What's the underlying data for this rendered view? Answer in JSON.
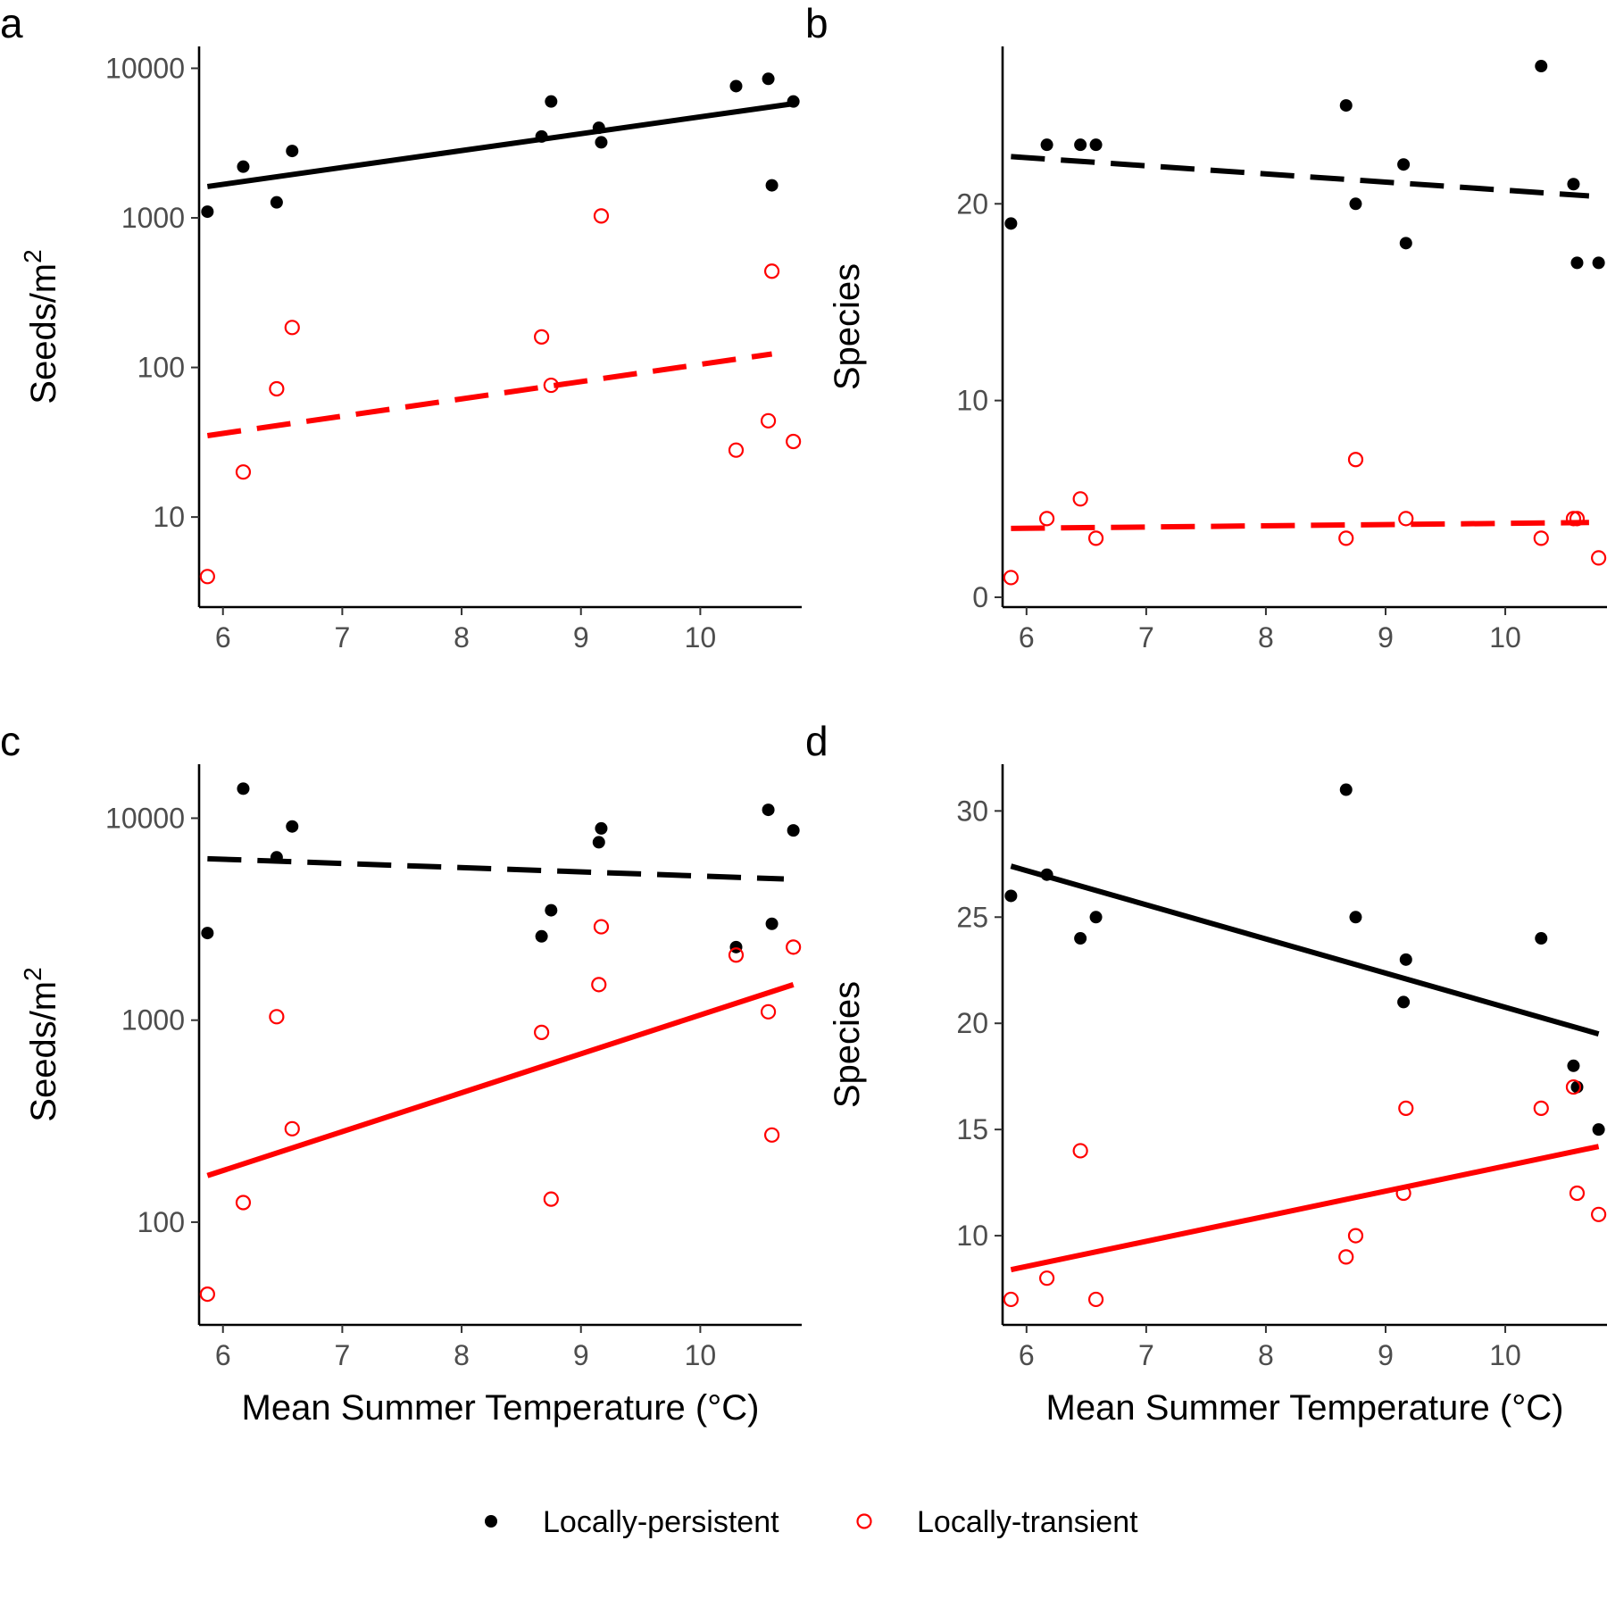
{
  "legend": {
    "items": [
      {
        "key": "persistent",
        "label": "Locally-persistent"
      },
      {
        "key": "transient",
        "label": "Locally-transient"
      }
    ]
  },
  "styles": {
    "persistent": {
      "color": "#000000",
      "marker": "filled-circle"
    },
    "transient": {
      "color": "#ff0000",
      "marker": "open-circle"
    }
  },
  "chart_data": [
    {
      "panel": "a",
      "type": "scatter",
      "xlabel": "",
      "ylabel": "Seeds/m",
      "ylabel_sup": "2",
      "yscale": "log",
      "xlim": [
        5.8,
        10.85
      ],
      "ylim": [
        2.5,
        14000
      ],
      "xticks": [
        6,
        7,
        8,
        9,
        10
      ],
      "xtick_labels": [
        "6",
        "7",
        "8",
        "9",
        "10"
      ],
      "yticks": [
        10,
        100,
        1000,
        10000
      ],
      "ytick_labels": [
        "10",
        "100",
        "1000",
        "10000"
      ],
      "grid": false,
      "series": [
        {
          "key": "persistent",
          "points": [
            [
              5.87,
              1100
            ],
            [
              6.17,
              2200
            ],
            [
              6.45,
              1270
            ],
            [
              6.58,
              2800
            ],
            [
              8.67,
              3500
            ],
            [
              8.75,
              6000
            ],
            [
              9.15,
              4000
            ],
            [
              9.17,
              3200
            ],
            [
              10.3,
              7600
            ],
            [
              10.57,
              8500
            ],
            [
              10.6,
              1650
            ],
            [
              10.78,
              6000
            ]
          ],
          "fit": {
            "x": [
              5.87,
              10.78
            ],
            "y": [
              1620,
              5800
            ],
            "style": "solid"
          }
        },
        {
          "key": "transient",
          "points": [
            [
              5.87,
              4
            ],
            [
              6.17,
              20
            ],
            [
              6.45,
              72
            ],
            [
              6.58,
              185
            ],
            [
              8.67,
              160
            ],
            [
              8.75,
              76
            ],
            [
              9.17,
              1030
            ],
            [
              10.3,
              28
            ],
            [
              10.57,
              44
            ],
            [
              10.6,
              440
            ],
            [
              10.78,
              32
            ]
          ],
          "fit": {
            "x": [
              5.87,
              10.6
            ],
            "y": [
              35,
              123
            ],
            "style": "dashed"
          }
        }
      ]
    },
    {
      "panel": "b",
      "type": "scatter",
      "xlabel": "",
      "ylabel": "Species",
      "yscale": "linear",
      "xlim": [
        5.8,
        10.85
      ],
      "ylim": [
        -0.5,
        28
      ],
      "xticks": [
        6,
        7,
        8,
        9,
        10
      ],
      "xtick_labels": [
        "6",
        "7",
        "8",
        "9",
        "10"
      ],
      "yticks": [
        0,
        10,
        20
      ],
      "ytick_labels": [
        "0",
        "10",
        "20"
      ],
      "grid": false,
      "series": [
        {
          "key": "persistent",
          "points": [
            [
              5.87,
              19
            ],
            [
              6.17,
              23
            ],
            [
              6.45,
              23
            ],
            [
              6.58,
              23
            ],
            [
              8.67,
              25
            ],
            [
              8.75,
              20
            ],
            [
              9.15,
              22
            ],
            [
              9.17,
              18
            ],
            [
              10.3,
              27
            ],
            [
              10.57,
              21
            ],
            [
              10.6,
              17
            ],
            [
              10.78,
              17
            ]
          ],
          "fit": {
            "x": [
              5.87,
              10.7
            ],
            "y": [
              22.4,
              20.4
            ],
            "style": "dashed"
          }
        },
        {
          "key": "transient",
          "points": [
            [
              5.87,
              1
            ],
            [
              6.17,
              4
            ],
            [
              6.45,
              5
            ],
            [
              6.58,
              3
            ],
            [
              8.67,
              3
            ],
            [
              8.75,
              7
            ],
            [
              9.17,
              4
            ],
            [
              10.3,
              3
            ],
            [
              10.57,
              4
            ],
            [
              10.6,
              4
            ],
            [
              10.78,
              2
            ]
          ],
          "fit": {
            "x": [
              5.87,
              10.7
            ],
            "y": [
              3.5,
              3.8
            ],
            "style": "dashed"
          }
        }
      ]
    },
    {
      "panel": "c",
      "type": "scatter",
      "xlabel": "Mean Summer Temperature (°C)",
      "ylabel": "Seeds/m",
      "ylabel_sup": "2",
      "yscale": "log",
      "xlim": [
        5.8,
        10.85
      ],
      "ylim": [
        31,
        18500
      ],
      "xticks": [
        6,
        7,
        8,
        9,
        10
      ],
      "xtick_labels": [
        "6",
        "7",
        "8",
        "9",
        "10"
      ],
      "yticks": [
        100,
        1000,
        10000
      ],
      "ytick_labels": [
        "100",
        "1000",
        "10000"
      ],
      "grid": false,
      "series": [
        {
          "key": "persistent",
          "points": [
            [
              5.87,
              2700
            ],
            [
              6.17,
              14000
            ],
            [
              6.45,
              6400
            ],
            [
              6.58,
              9100
            ],
            [
              8.67,
              2600
            ],
            [
              8.75,
              3500
            ],
            [
              9.15,
              7600
            ],
            [
              9.17,
              8900
            ],
            [
              10.3,
              2300
            ],
            [
              10.57,
              11000
            ],
            [
              10.6,
              3000
            ],
            [
              10.78,
              8700
            ]
          ],
          "fit": {
            "x": [
              5.87,
              10.7
            ],
            "y": [
              6300,
              5000
            ],
            "style": "dashed"
          }
        },
        {
          "key": "transient",
          "points": [
            [
              5.87,
              44
            ],
            [
              6.17,
              125
            ],
            [
              6.45,
              1040
            ],
            [
              6.58,
              290
            ],
            [
              8.67,
              870
            ],
            [
              8.75,
              130
            ],
            [
              9.15,
              1500
            ],
            [
              9.17,
              2900
            ],
            [
              10.3,
              2100
            ],
            [
              10.57,
              1100
            ],
            [
              10.6,
              270
            ],
            [
              10.78,
              2300
            ]
          ],
          "fit": {
            "x": [
              5.87,
              10.78
            ],
            "y": [
              170,
              1500
            ],
            "style": "solid"
          }
        }
      ]
    },
    {
      "panel": "d",
      "type": "scatter",
      "xlabel": "Mean Summer Temperature (°C)",
      "ylabel": "Species",
      "yscale": "linear",
      "xlim": [
        5.8,
        10.85
      ],
      "ylim": [
        5.8,
        32.2
      ],
      "xticks": [
        6,
        7,
        8,
        9,
        10
      ],
      "xtick_labels": [
        "6",
        "7",
        "8",
        "9",
        "10"
      ],
      "yticks": [
        10,
        15,
        20,
        25,
        30
      ],
      "ytick_labels": [
        "10",
        "15",
        "20",
        "25",
        "30"
      ],
      "grid": false,
      "series": [
        {
          "key": "persistent",
          "points": [
            [
              5.87,
              26
            ],
            [
              6.17,
              27
            ],
            [
              6.45,
              24
            ],
            [
              6.58,
              25
            ],
            [
              8.67,
              31
            ],
            [
              8.75,
              25
            ],
            [
              9.15,
              21
            ],
            [
              9.17,
              23
            ],
            [
              10.3,
              24
            ],
            [
              10.57,
              18
            ],
            [
              10.6,
              17
            ],
            [
              10.78,
              15
            ]
          ],
          "fit": {
            "x": [
              5.87,
              10.78
            ],
            "y": [
              27.4,
              19.5
            ],
            "style": "solid"
          }
        },
        {
          "key": "transient",
          "points": [
            [
              5.87,
              7
            ],
            [
              6.17,
              8
            ],
            [
              6.45,
              14
            ],
            [
              6.58,
              7
            ],
            [
              8.67,
              9
            ],
            [
              8.75,
              10
            ],
            [
              9.15,
              12
            ],
            [
              9.17,
              16
            ],
            [
              10.3,
              16
            ],
            [
              10.57,
              17
            ],
            [
              10.6,
              12
            ],
            [
              10.78,
              11
            ]
          ],
          "fit": {
            "x": [
              5.87,
              10.78
            ],
            "y": [
              8.4,
              14.2
            ],
            "style": "solid"
          }
        }
      ]
    }
  ]
}
